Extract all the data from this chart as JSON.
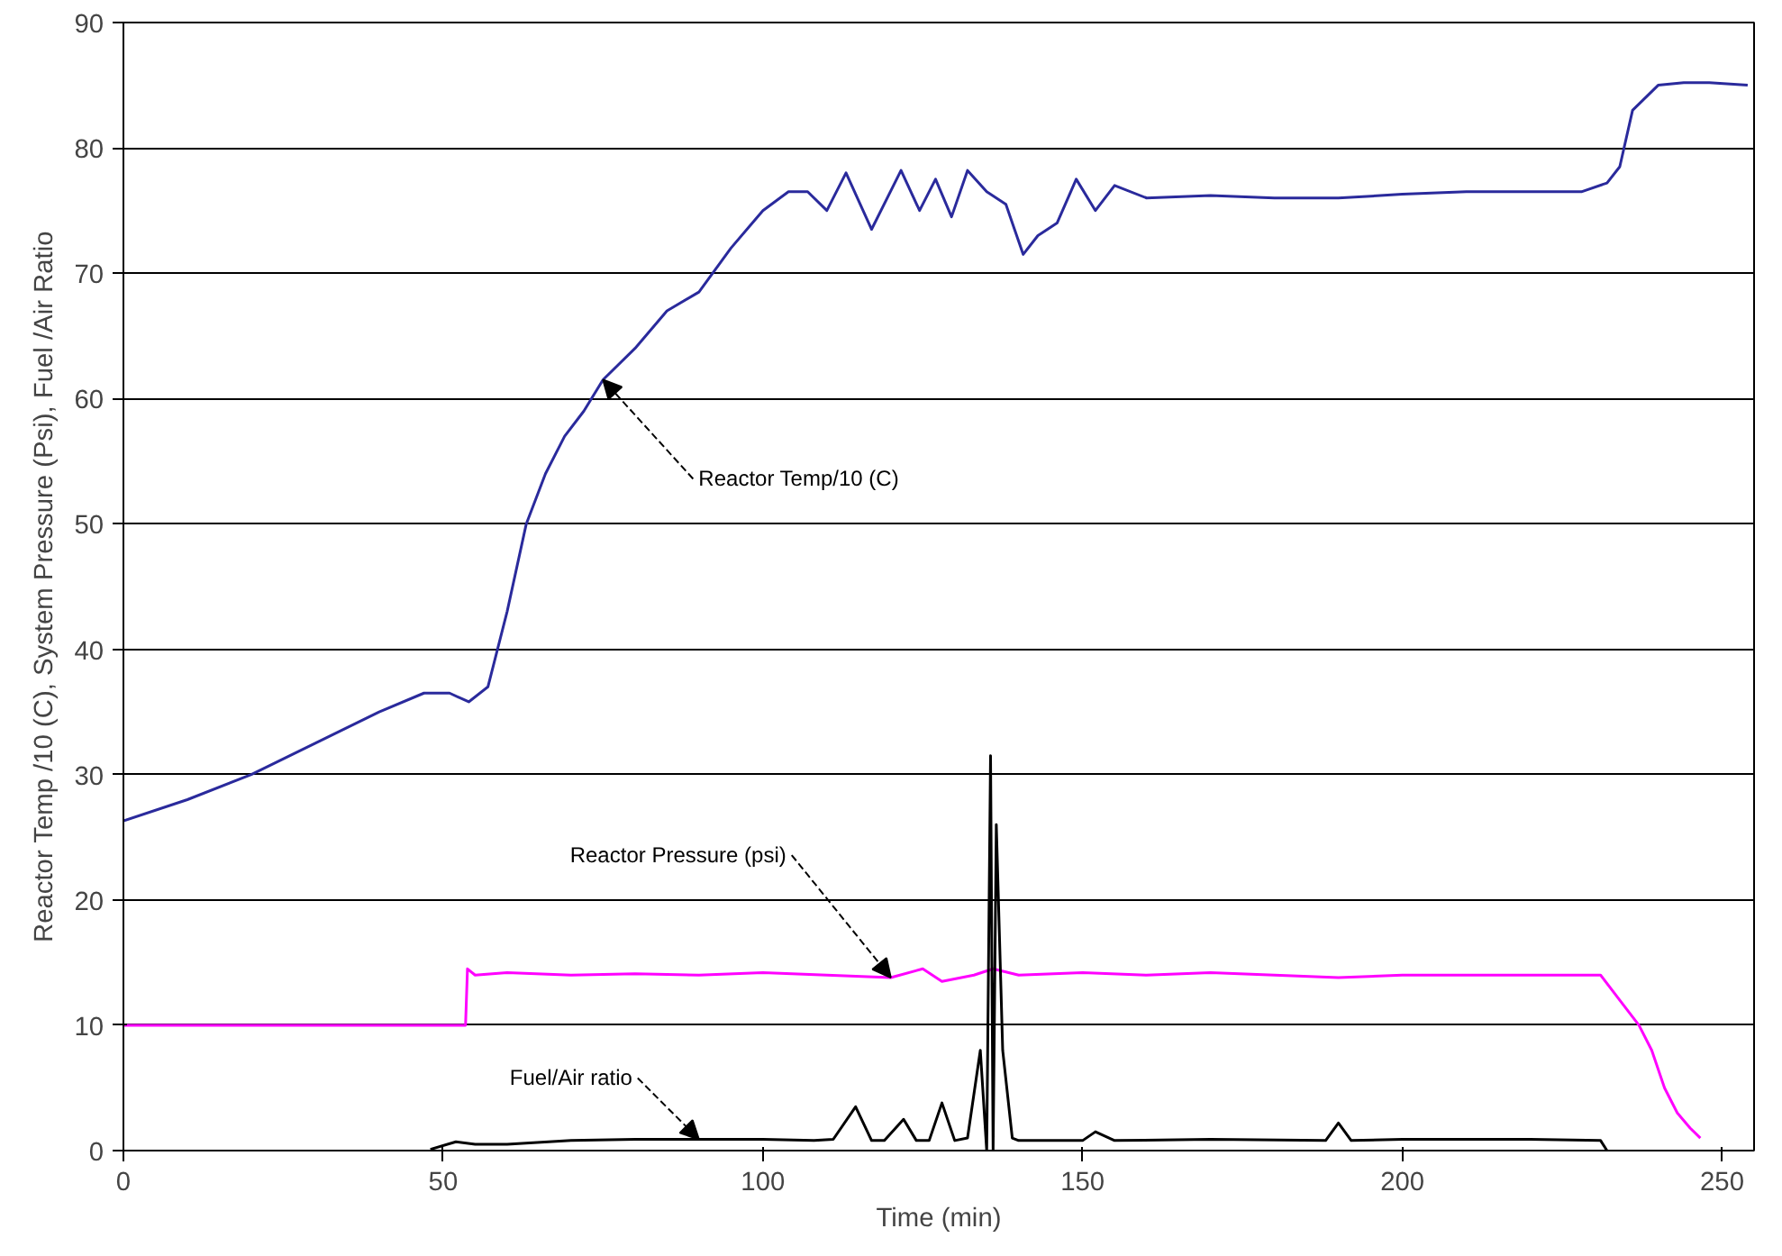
{
  "chart_data": {
    "type": "line",
    "xlabel": "Time (min)",
    "ylabel": "Reactor Temp /10 (C), System Pressure (Psi), Fuel /Air Ratio",
    "xlim": [
      0,
      255
    ],
    "ylim": [
      0,
      90
    ],
    "xticks": [
      0,
      50,
      100,
      150,
      200,
      250
    ],
    "yticks": [
      0,
      10,
      20,
      30,
      40,
      50,
      60,
      70,
      80,
      90
    ],
    "grid": "y",
    "line_style": "solid",
    "marker": "none",
    "series": [
      {
        "color": "#2a2a9c",
        "x": [
          0,
          10,
          20,
          30,
          40,
          47,
          51,
          54,
          57,
          60,
          63,
          66,
          69,
          72,
          75,
          80,
          85,
          90,
          95,
          100,
          104,
          107,
          110,
          113,
          117,
          121.6,
          124.5,
          127,
          129.5,
          132,
          135,
          138,
          140.7,
          143,
          146,
          149,
          152,
          155,
          160,
          170,
          180,
          190,
          200,
          210,
          220,
          228,
          232,
          234,
          236,
          240,
          244,
          248,
          254
        ],
        "values": [
          26.3,
          28,
          30,
          32.5,
          35,
          36.5,
          36.5,
          35.8,
          37,
          43,
          50,
          54,
          57,
          59,
          61.5,
          64,
          67,
          68.5,
          72,
          75,
          76.5,
          76.5,
          75,
          78,
          73.5,
          78.2,
          75,
          77.5,
          74.5,
          78.2,
          76.5,
          75.5,
          71.5,
          73,
          74,
          77.5,
          75,
          77,
          76,
          76.2,
          76,
          76,
          76.3,
          76.5,
          76.5,
          76.5,
          77.2,
          78.5,
          83,
          85,
          85.2,
          85.2,
          85
        ]
      },
      {
        "color": "#ff00ff",
        "x": [
          0,
          20,
          40,
          50,
          53.5,
          53.8,
          55,
          60,
          70,
          80,
          90,
          100,
          110,
          120,
          125,
          128,
          133,
          136,
          140,
          150,
          160,
          170,
          180,
          190,
          200,
          210,
          220,
          231,
          234,
          237,
          239,
          241,
          243,
          245,
          246.6
        ],
        "values": [
          10,
          10,
          10,
          10,
          10,
          14.5,
          14,
          14.2,
          14,
          14.1,
          14,
          14.2,
          14,
          13.8,
          14.5,
          13.5,
          14,
          14.5,
          14,
          14.2,
          14,
          14.2,
          14,
          13.8,
          14,
          14,
          14,
          14,
          12,
          10,
          8,
          5,
          3,
          1.8,
          1
        ]
      },
      {
        "color": "#000000",
        "x": [
          48,
          52,
          55,
          60,
          70,
          80,
          90,
          100,
          108,
          111,
          114.5,
          117,
          119,
          122,
          124,
          126,
          128,
          130,
          132,
          134,
          135,
          135.6,
          136,
          136.5,
          137.5,
          139,
          140,
          150,
          152,
          155,
          170,
          188,
          190,
          192,
          200,
          220,
          231,
          232
        ],
        "values": [
          0.1,
          0.7,
          0.5,
          0.5,
          0.8,
          0.9,
          0.9,
          0.9,
          0.8,
          0.9,
          3.5,
          0.8,
          0.8,
          2.5,
          0.8,
          0.8,
          3.8,
          0.8,
          1,
          8,
          0,
          31.5,
          0,
          26,
          8,
          1,
          0.8,
          0.8,
          1.5,
          0.8,
          0.9,
          0.8,
          2.2,
          0.8,
          0.9,
          0.9,
          0.8,
          0
        ]
      }
    ],
    "annotations": [
      {
        "text": "Reactor Temp/10 (C)",
        "x": 75,
        "y": 61.5
      },
      {
        "text": "Reactor Pressure (psi)",
        "x": 120,
        "y": 13.8
      },
      {
        "text": "Fuel/Air ratio",
        "x": 90,
        "y": 0.9
      }
    ]
  }
}
